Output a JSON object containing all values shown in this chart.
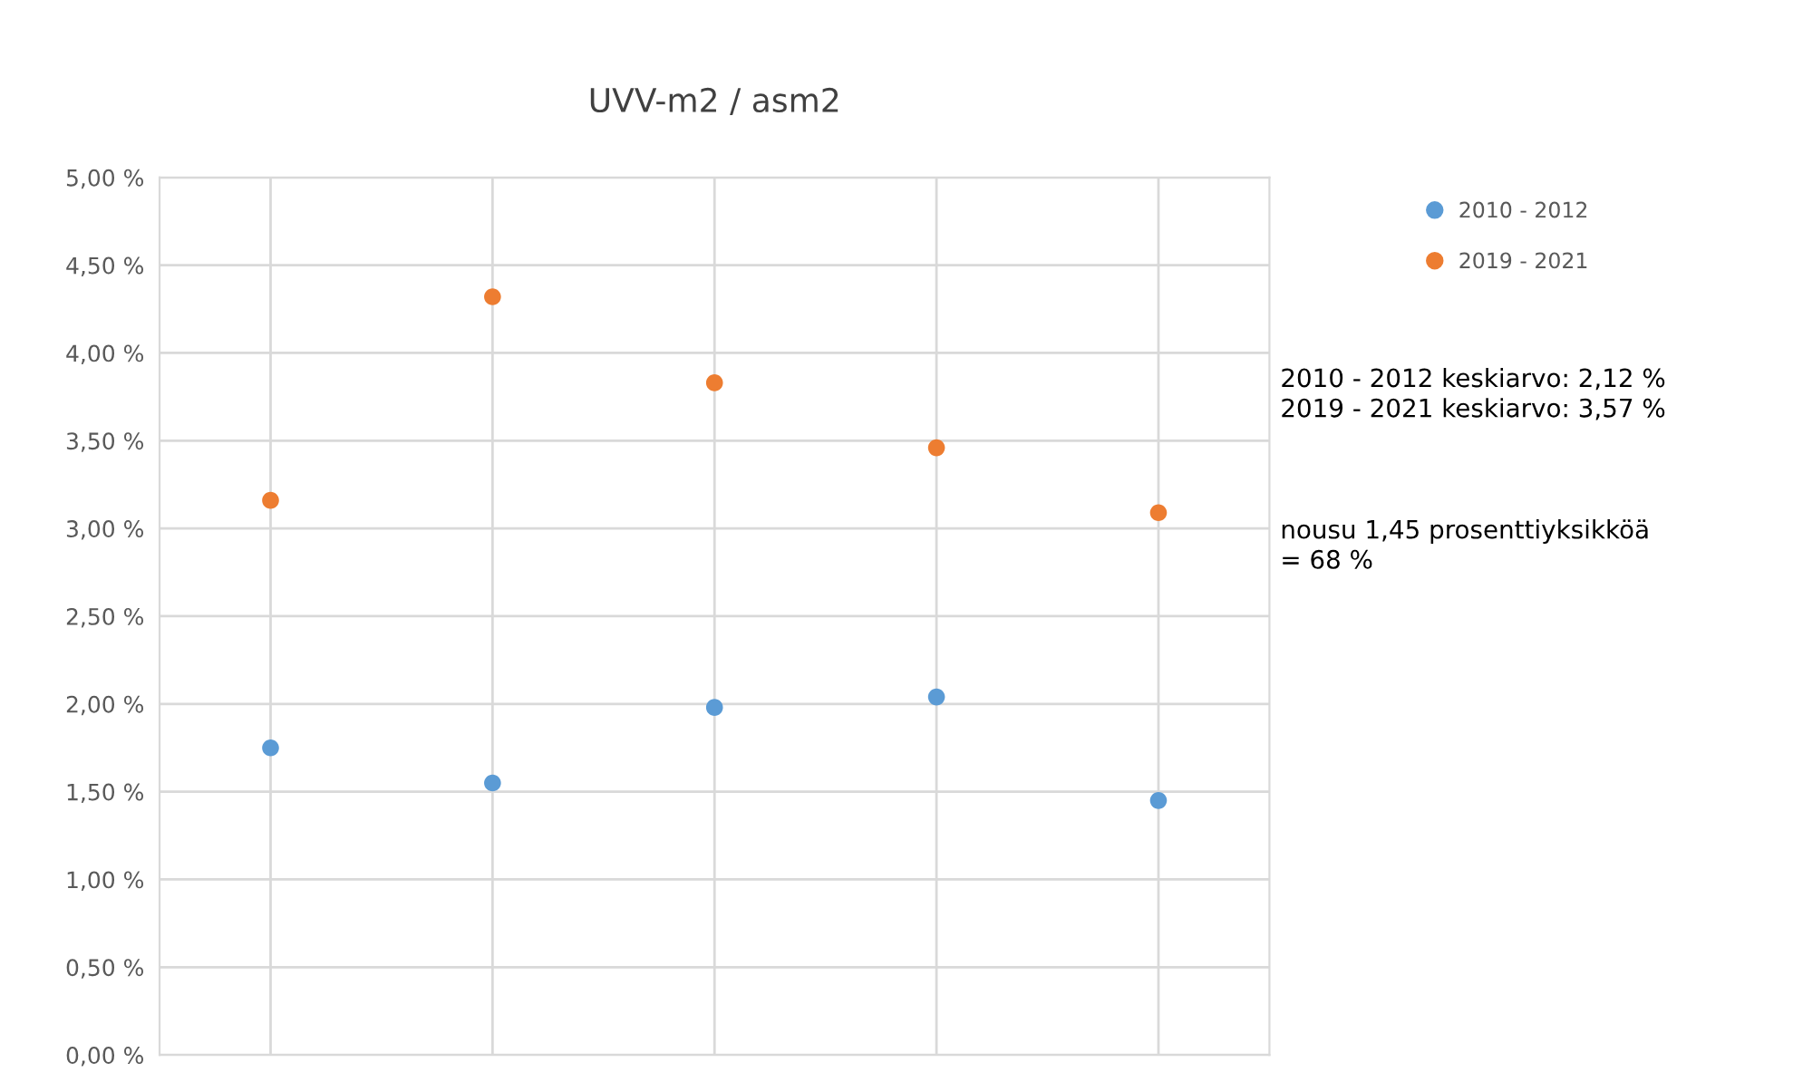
{
  "chart_data": {
    "type": "scatter",
    "title": "UVV-m2 / asm2",
    "categories": [
      null,
      null,
      null,
      null,
      null
    ],
    "series": [
      {
        "name": "2010 - 2012",
        "color": "#5b9bd5",
        "values": [
          1.75,
          1.55,
          1.98,
          2.04,
          1.45
        ]
      },
      {
        "name": "2019 - 2021",
        "color": "#ed7d31",
        "values": [
          3.16,
          4.32,
          3.83,
          3.46,
          3.09
        ]
      }
    ],
    "ylim": [
      0,
      5
    ],
    "yticks": [
      {
        "value": 0,
        "label": "0,00 %"
      },
      {
        "value": 0.5,
        "label": "0,50 %"
      },
      {
        "value": 1,
        "label": "1,00 %"
      },
      {
        "value": 1.5,
        "label": "1,50 %"
      },
      {
        "value": 2,
        "label": "2,00 %"
      },
      {
        "value": 2.5,
        "label": "2,50 %"
      },
      {
        "value": 3,
        "label": "3,00 %"
      },
      {
        "value": 3.5,
        "label": "3,50 %"
      },
      {
        "value": 4,
        "label": "4,00 %"
      },
      {
        "value": 4.5,
        "label": "4,50 %"
      },
      {
        "value": 5,
        "label": "5,00 %"
      }
    ],
    "tick_labels": "y",
    "grid": true,
    "legend": "top right",
    "marker": "circle",
    "annotations": [
      "2010 - 2012 keskiarvo: 2,12 %\n2019 - 2021 keskiarvo: 3,57 %",
      "nousu 1,45 prosenttiyksikköä\n= 68 %"
    ]
  }
}
